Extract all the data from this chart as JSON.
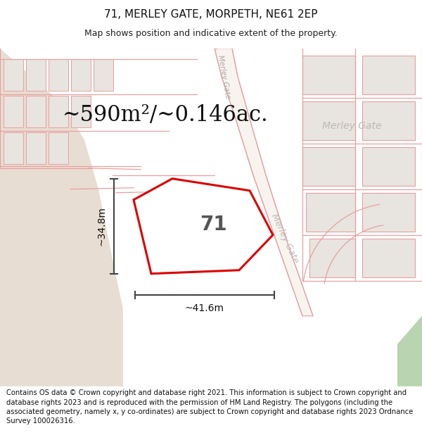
{
  "title_line1": "71, MERLEY GATE, MORPETH, NE61 2EP",
  "title_line2": "Map shows position and indicative extent of the property.",
  "area_text": "~590m²/~0.146ac.",
  "label_71": "71",
  "dim_height": "~34.8m",
  "dim_width": "~41.6m",
  "merley_gate_diagonal": "Merley Gate",
  "merley_gate_horizontal": "Merley Gate",
  "merley_gate_top": "Merley Gate",
  "footer_text": "Contains OS data © Crown copyright and database right 2021. This information is subject to Crown copyright and database rights 2023 and is reproduced with the permission of HM Land Registry. The polygons (including the associated geometry, namely x, y co-ordinates) are subject to Crown copyright and database rights 2023 Ordnance Survey 100026316.",
  "bg_color": "#ffffff",
  "map_bg": "#f7f4f0",
  "left_open_color": "#e8ddd2",
  "plot_color_red": "#e8000000",
  "road_fill": "#f7f4f0",
  "road_line_color": "#e8a0a0",
  "building_light": "#e8e4df",
  "building_mid": "#d8d3cd",
  "building_dark": "#c8c3bc",
  "green_color": "#b8d4b0",
  "dim_color": "#444444",
  "label_color": "#555555",
  "road_label_color": "#aaaaaa",
  "title_fontsize": 11,
  "subtitle_fontsize": 9,
  "area_fontsize": 22,
  "label_fontsize": 20,
  "dim_fontsize": 10,
  "footer_fontsize": 7.2
}
